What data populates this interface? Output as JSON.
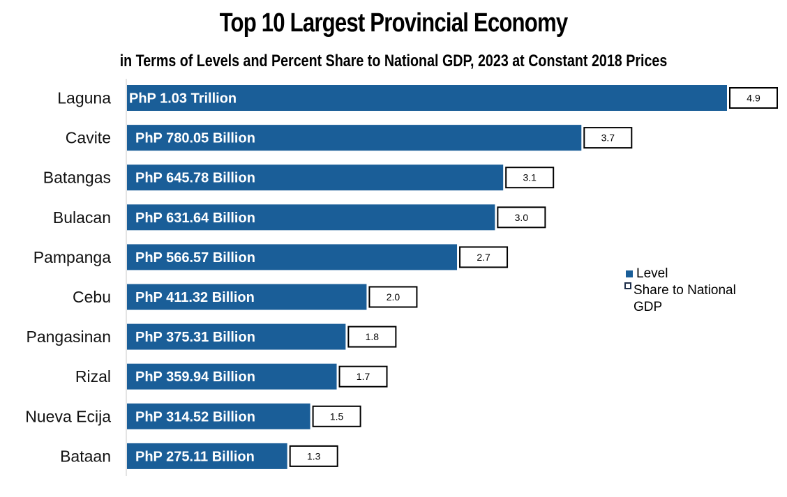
{
  "title": "Top 10 Largest Provincial Economy",
  "subtitle": "in Terms of Levels and Percent Share to National GDP, 2023 at Constant 2018 Prices",
  "colors": {
    "bar": "#1a5e98",
    "bar_label": "#ffffff",
    "share_box_border": "#000000"
  },
  "legend": {
    "level_label": "Level",
    "share_label": "Share to National GDP",
    "placement": "right"
  },
  "chart_data": {
    "type": "bar",
    "orientation": "horizontal",
    "categories": [
      "Laguna",
      "Cavite",
      "Batangas",
      "Bulacan",
      "Pampanga",
      "Cebu",
      "Pangasinan",
      "Rizal",
      "Nueva Ecija",
      "Bataan"
    ],
    "series": [
      {
        "name": "Level",
        "values_billion_php": [
          1030.0,
          780.05,
          645.78,
          631.64,
          566.57,
          411.32,
          375.31,
          359.94,
          314.52,
          275.11
        ],
        "labels": [
          "PhP 1.03 Trillion",
          "PhP 780.05 Billion",
          "PhP 645.78 Billion",
          "PhP 631.64 Billion",
          "PhP 566.57 Billion",
          "PhP 411.32 Billion",
          "PhP 375.31 Billion",
          "PhP 359.94 Billion",
          "PhP 314.52 Billion",
          "PhP 275.11 Billion"
        ]
      },
      {
        "name": "Share to National GDP",
        "values": [
          4.9,
          3.7,
          3.1,
          3.0,
          2.7,
          2.0,
          1.8,
          1.7,
          1.5,
          1.3
        ],
        "labels": [
          "4.9",
          "3.7",
          "3.1",
          "3.0",
          "2.7",
          "2.0",
          "1.8",
          "1.7",
          "1.5",
          "1.3"
        ]
      }
    ],
    "grid": false
  }
}
